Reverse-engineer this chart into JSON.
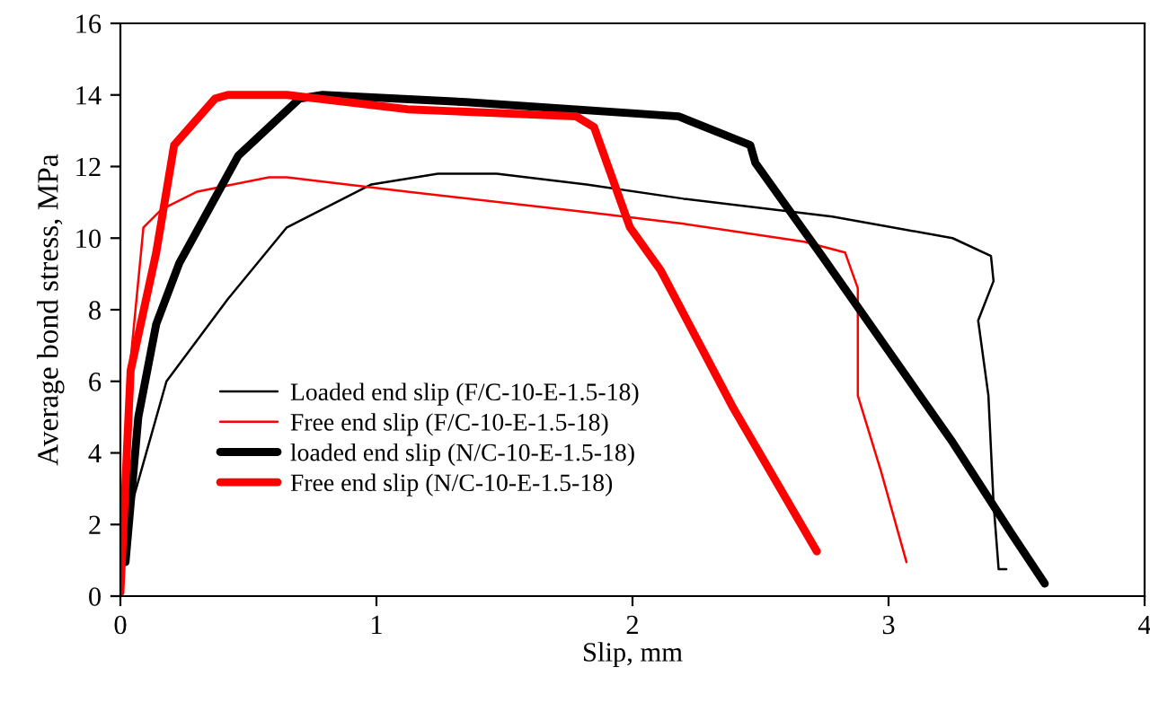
{
  "chart_data": {
    "type": "line",
    "xlabel": "Slip, mm",
    "ylabel": "Average bond stress, MPa",
    "xlim": [
      0,
      4
    ],
    "ylim": [
      0,
      16
    ],
    "xticks": [
      0,
      1,
      2,
      3,
      4
    ],
    "yticks": [
      0,
      2,
      4,
      6,
      8,
      10,
      12,
      14,
      16
    ],
    "grid": false,
    "legend": "bottom left",
    "marker": "none",
    "line_style": "solid",
    "series": [
      {
        "name": "Loaded end slip (F/C-10-E-1.5-18)",
        "color": "#000000",
        "x": [
          0,
          0.02,
          0.18,
          0.42,
          0.65,
          0.98,
          1.24,
          1.47,
          1.82,
          2.2,
          2.78,
          3.25,
          3.4,
          3.41,
          3.35,
          3.39,
          3.41,
          3.43,
          3.46
        ],
        "values": [
          0,
          1.95,
          6.0,
          8.3,
          10.3,
          11.5,
          11.8,
          11.8,
          11.5,
          11.1,
          10.6,
          10.0,
          9.5,
          8.8,
          7.7,
          5.6,
          2.6,
          0.75,
          0.75
        ]
      },
      {
        "name": "Free end slip (F/C-10-E-1.5-18)",
        "color": "#ff0000",
        "x": [
          0,
          0.04,
          0.09,
          0.16,
          0.3,
          0.58,
          0.65,
          1.12,
          1.85,
          2.2,
          2.67,
          2.83,
          2.88,
          2.88,
          2.97,
          3.07
        ],
        "values": [
          0.25,
          6.6,
          10.3,
          10.8,
          11.3,
          11.7,
          11.7,
          11.3,
          10.7,
          10.4,
          9.9,
          9.6,
          8.6,
          5.6,
          3.5,
          0.95
        ]
      },
      {
        "name": "loaded end slip (N/C-10-E-1.5-18)",
        "color": "#000000",
        "x": [
          0.02,
          0.07,
          0.14,
          0.23,
          0.46,
          0.7,
          0.79,
          1.35,
          2.18,
          2.46,
          2.48,
          2.74,
          3.25,
          3.48,
          3.61
        ],
        "values": [
          0.95,
          5.0,
          7.6,
          9.3,
          12.3,
          13.9,
          14.0,
          13.8,
          13.4,
          12.6,
          12.1,
          9.5,
          4.3,
          1.75,
          0.35
        ]
      },
      {
        "name": "Free end slip (N/C-10-E-1.5-18)",
        "color": "#ff0000",
        "x": [
          0,
          0.04,
          0.14,
          0.21,
          0.37,
          0.42,
          0.65,
          1.12,
          1.78,
          1.85,
          1.99,
          2.11,
          2.39,
          2.72
        ],
        "values": [
          0.1,
          6.3,
          9.6,
          12.6,
          13.9,
          14.0,
          14.0,
          13.6,
          13.4,
          13.1,
          10.3,
          9.1,
          5.3,
          1.25
        ]
      }
    ]
  }
}
